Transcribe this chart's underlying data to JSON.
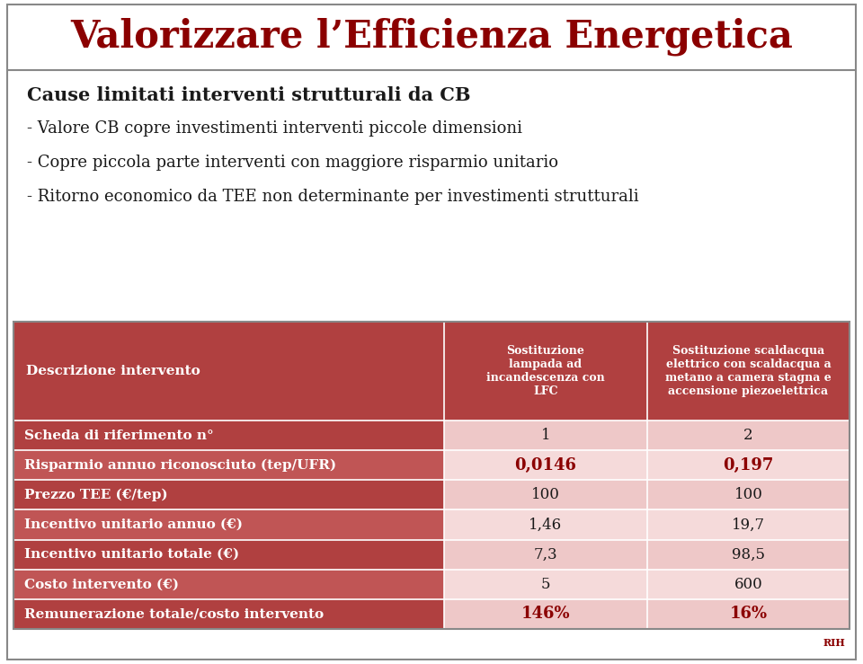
{
  "title": "Valorizzare l’Efficienza Energetica",
  "title_color": "#8B0000",
  "title_fontsize": 30,
  "bg_color": "#FFFFFF",
  "border_color": "#888888",
  "bullet_heading": "Cause limitati interventi strutturali da CB",
  "bullet_heading_fontsize": 15,
  "bullets": [
    "- Valore CB copre investimenti interventi piccole dimensioni",
    "- Copre piccola parte interventi con maggiore risparmio unitario",
    "- Ritorno economico da TEE non determinante per investimenti strutturali"
  ],
  "bullet_fontsize": 13,
  "table_red_dark": "#B04040",
  "table_red_medium": "#C05555",
  "table_pink_light": "#EEC8C8",
  "table_pink_lighter": "#F5DADA",
  "col1_header": "Descrizione intervento",
  "col2_header": "Sostituzione\nlampada ad\nincandescenza con\nLFC",
  "col3_header": "Sostituzione scaldacqua\nelettrico con scaldacqua a\nmetano a camera stagna e\naccensione piezoelettrica",
  "rows": [
    {
      "label": "Scheda di riferimento n°",
      "val1": "1",
      "val2": "2",
      "row_bg_label": "#B04040",
      "row_bg_val": "#EEC8C8",
      "val_color": "#1a1a1a",
      "bold_vals": false
    },
    {
      "label": "Risparmio annuo riconosciuto (tep/UFR)",
      "val1": "0,0146",
      "val2": "0,197",
      "row_bg_label": "#C05555",
      "row_bg_val": "#F5DADA",
      "val_color": "#8B0000",
      "bold_vals": true
    },
    {
      "label": "Prezzo TEE (€/tep)",
      "val1": "100",
      "val2": "100",
      "row_bg_label": "#B04040",
      "row_bg_val": "#EEC8C8",
      "val_color": "#1a1a1a",
      "bold_vals": false
    },
    {
      "label": "Incentivo unitario annuo (€)",
      "val1": "1,46",
      "val2": "19,7",
      "row_bg_label": "#C05555",
      "row_bg_val": "#F5DADA",
      "val_color": "#1a1a1a",
      "bold_vals": false
    },
    {
      "label": "Incentivo unitario totale (€)",
      "val1": "7,3",
      "val2": "98,5",
      "row_bg_label": "#B04040",
      "row_bg_val": "#EEC8C8",
      "val_color": "#1a1a1a",
      "bold_vals": false
    },
    {
      "label": "Costo intervento (€)",
      "val1": "5",
      "val2": "600",
      "row_bg_label": "#C05555",
      "row_bg_val": "#F5DADA",
      "val_color": "#1a1a1a",
      "bold_vals": false
    },
    {
      "label": "Remunerazione totale/costo intervento",
      "val1": "146%",
      "val2": "16%",
      "row_bg_label": "#B04040",
      "row_bg_val": "#EEC8C8",
      "val_color": "#8B0000",
      "bold_vals": true
    }
  ],
  "figw": 9.6,
  "figh": 7.39,
  "dpi": 100
}
